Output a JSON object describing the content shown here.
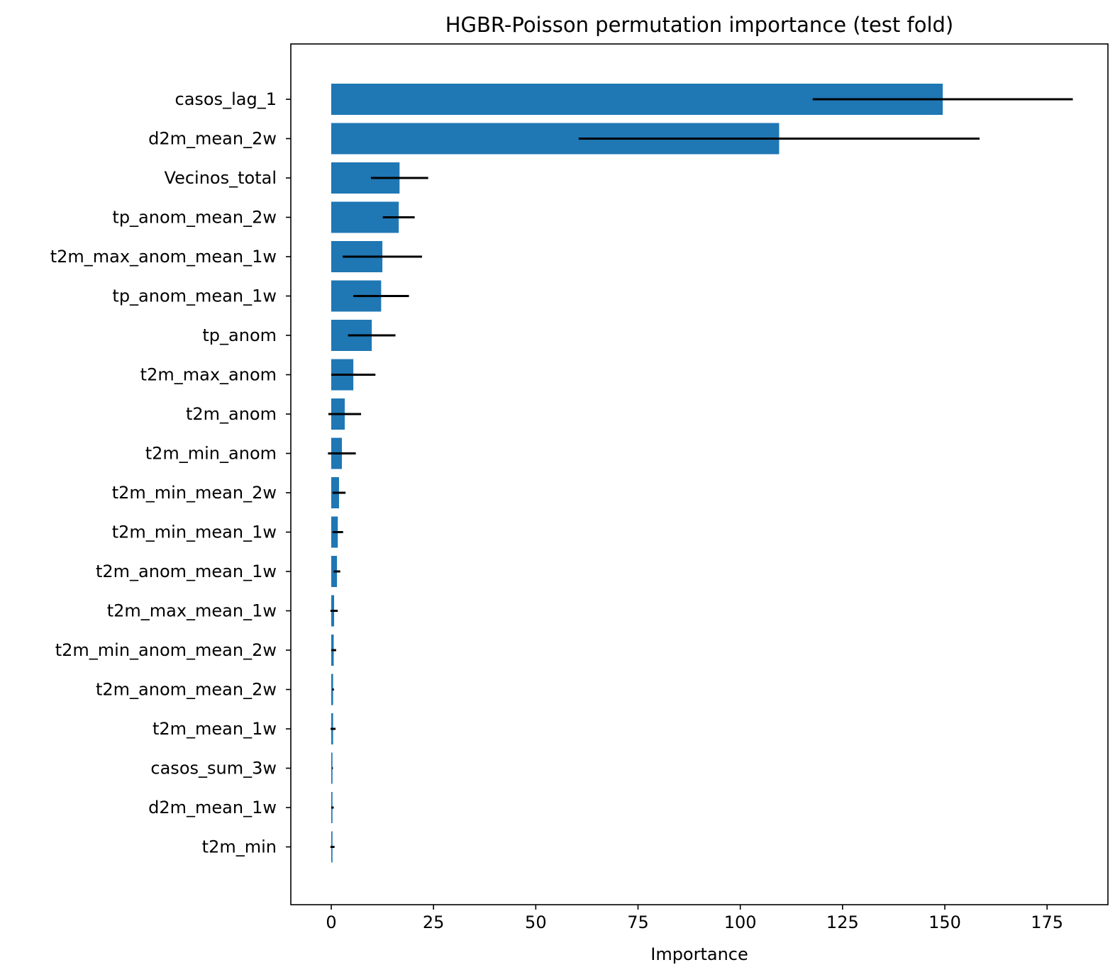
{
  "chart_data": {
    "type": "bar",
    "orientation": "horizontal",
    "title": "HGBR-Poisson permutation importance (test fold)",
    "xlabel": "Importance",
    "ylabel": "",
    "xlim": [
      -10,
      191
    ],
    "xticks": [
      0,
      25,
      50,
      75,
      100,
      125,
      150,
      175
    ],
    "xtick_labels": [
      "0",
      "25",
      "50",
      "75",
      "100",
      "125",
      "150",
      "175"
    ],
    "bar_color": "#1f77b4",
    "errorbar_color": "#000000",
    "grid": false,
    "categories": [
      "casos_lag_1",
      "d2m_mean_2w",
      "Vecinos_total",
      "tp_anom_mean_2w",
      "t2m_max_anom_mean_1w",
      "tp_anom_mean_1w",
      "tp_anom",
      "t2m_max_anom",
      "t2m_anom",
      "t2m_min_anom",
      "t2m_min_mean_2w",
      "t2m_min_mean_1w",
      "t2m_anom_mean_1w",
      "t2m_max_mean_1w",
      "t2m_min_anom_mean_2w",
      "t2m_anom_mean_2w",
      "t2m_mean_1w",
      "casos_sum_3w",
      "d2m_mean_1w",
      "t2m_min"
    ],
    "values": [
      149.5,
      109.5,
      16.7,
      16.5,
      12.5,
      12.2,
      9.9,
      5.4,
      3.3,
      2.6,
      1.9,
      1.6,
      1.4,
      0.7,
      0.6,
      0.45,
      0.45,
      0.3,
      0.3,
      0.3
    ],
    "errors": [
      31.8,
      49.0,
      7.0,
      3.9,
      9.7,
      6.8,
      5.8,
      5.4,
      4.0,
      3.4,
      1.6,
      1.3,
      0.8,
      0.9,
      0.6,
      0.2,
      0.6,
      0.1,
      0.3,
      0.5
    ]
  }
}
